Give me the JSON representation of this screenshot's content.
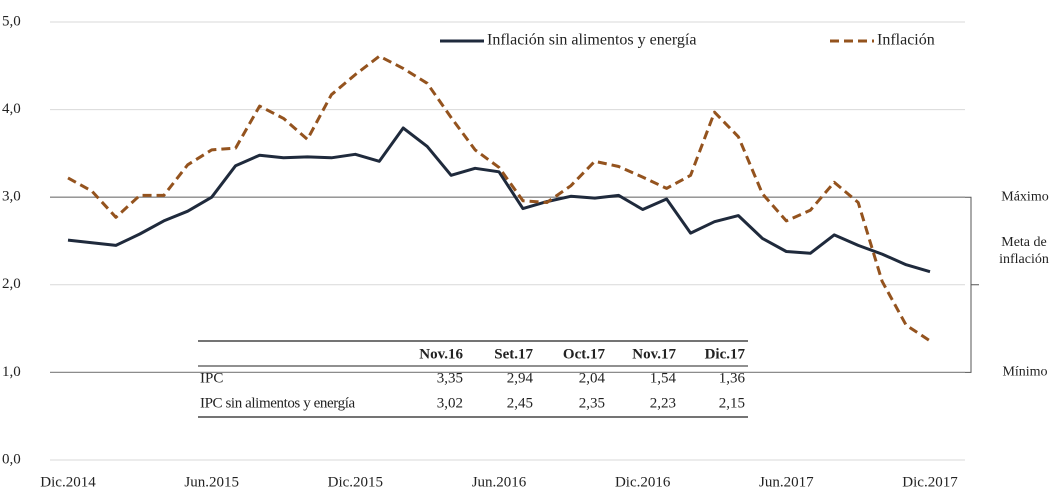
{
  "chart_data": {
    "type": "line",
    "categories": [
      "Dic.2014",
      null,
      null,
      null,
      null,
      null,
      "Jun.2015",
      null,
      null,
      null,
      null,
      null,
      "Dic.2015",
      null,
      null,
      null,
      null,
      null,
      "Jun.2016",
      null,
      null,
      null,
      null,
      null,
      "Dic.2016",
      null,
      null,
      null,
      null,
      null,
      "Jun.2017",
      null,
      null,
      null,
      null,
      null,
      "Dic.2017"
    ],
    "series": [
      {
        "name": "Inflación sin alimentos y energía",
        "color": "#1f2a3c",
        "dash": false,
        "values": [
          2.51,
          2.48,
          2.45,
          2.58,
          2.73,
          2.84,
          3.0,
          3.36,
          3.48,
          3.45,
          3.46,
          3.45,
          3.49,
          3.41,
          3.79,
          3.58,
          3.25,
          3.33,
          3.29,
          2.87,
          2.95,
          3.01,
          2.99,
          3.02,
          2.86,
          2.98,
          2.59,
          2.72,
          2.79,
          2.53,
          2.38,
          2.36,
          2.57,
          2.45,
          2.35,
          2.23,
          2.15
        ]
      },
      {
        "name": "Inflación",
        "color": "#94531e",
        "dash": true,
        "values": [
          3.22,
          3.07,
          2.77,
          3.02,
          3.02,
          3.37,
          3.54,
          3.56,
          4.04,
          3.9,
          3.66,
          4.17,
          4.4,
          4.61,
          4.47,
          4.3,
          3.91,
          3.54,
          3.34,
          2.96,
          2.94,
          3.13,
          3.41,
          3.35,
          3.23,
          3.1,
          3.25,
          3.97,
          3.69,
          3.04,
          2.73,
          2.85,
          3.17,
          2.94,
          2.04,
          1.54,
          1.36
        ]
      }
    ],
    "ylim": [
      0,
      5
    ],
    "yticks": [
      {
        "value": 0,
        "label": "0,0"
      },
      {
        "value": 1,
        "label": "1,0"
      },
      {
        "value": 2,
        "label": "2,0"
      },
      {
        "value": 3,
        "label": "3,0"
      },
      {
        "value": 4,
        "label": "4,0"
      },
      {
        "value": 5,
        "label": "5,0"
      }
    ],
    "grid": true,
    "legend": "top",
    "target_band": {
      "min": 1,
      "max": 3,
      "max_label": "Máximo",
      "mid_label": "Meta de inflación",
      "min_label": "Mínimo"
    }
  },
  "table": {
    "header": [
      "",
      "Nov.16",
      "Set.17",
      "Oct.17",
      "Nov.17",
      "Dic.17"
    ],
    "rows": [
      [
        "IPC",
        "3,35",
        "2,94",
        "2,04",
        "1,54",
        "1,36"
      ],
      [
        "IPC sin alimentos y energía",
        "3,02",
        "2,45",
        "2,35",
        "2,23",
        "2,15"
      ]
    ]
  }
}
